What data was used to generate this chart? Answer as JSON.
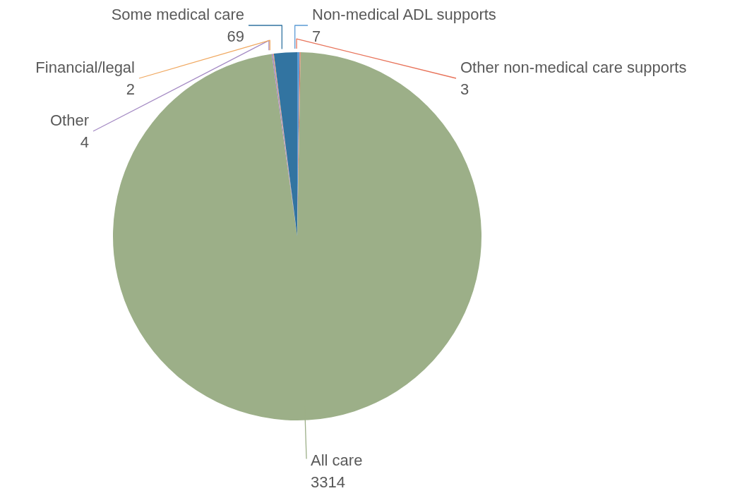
{
  "chart_data": {
    "type": "pie",
    "categories": [
      "Non-medical ADL supports",
      "Other non-medical care supports",
      "All care",
      "Other",
      "Financial/legal",
      "Some medical care"
    ],
    "values": [
      7,
      3,
      3314,
      4,
      2,
      69
    ],
    "colors": [
      "#5b9bd5",
      "#e8735a",
      "#9caf88",
      "#a58bc4",
      "#f0a860",
      "#3274a1"
    ],
    "data_labels": true
  }
}
